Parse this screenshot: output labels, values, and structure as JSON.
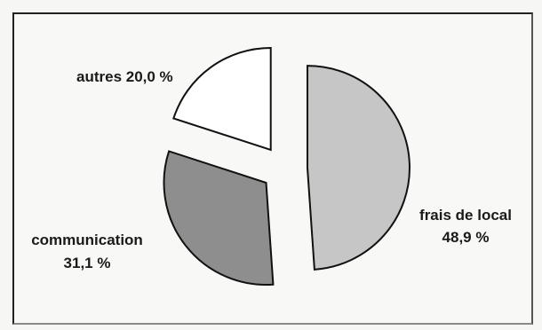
{
  "chart_data": {
    "type": "pie",
    "exploded": true,
    "slices": [
      {
        "label": "frais de local",
        "value_text": "48,9 %",
        "value": 48.9,
        "color": "#c6c6c6"
      },
      {
        "label": "communication",
        "value_text": "31,1 %",
        "value": 31.1,
        "color": "#8e8e8e"
      },
      {
        "label": "autres",
        "value_text": "20,0 %",
        "value": 20.0,
        "color": "#ffffff"
      }
    ],
    "labels": {
      "local_line1": "frais de local",
      "local_line2": "48,9 %",
      "comm_line1": "communication",
      "comm_line2": "31,1 %",
      "autres": "autres 20,0 %"
    }
  }
}
